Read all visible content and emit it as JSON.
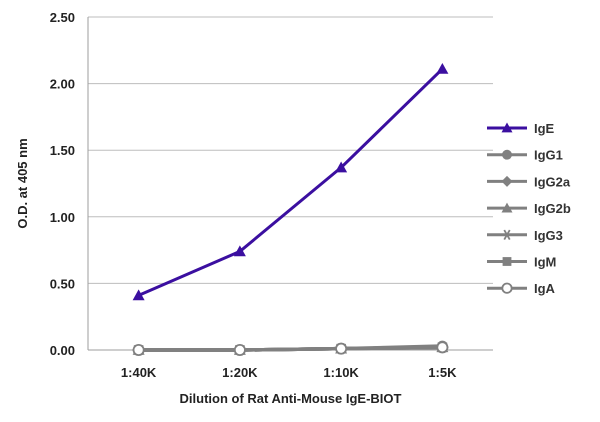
{
  "chart_data": {
    "type": "line",
    "title": "",
    "xlabel": "Dilution of Rat Anti-Mouse IgE-BIOT",
    "ylabel": "O.D. at 405 nm",
    "categories": [
      "1:40K",
      "1:20K",
      "1:10K",
      "1:5K"
    ],
    "ylim": [
      0,
      2.5
    ],
    "yticks": [
      0,
      0.5,
      1.0,
      1.5,
      2.0,
      2.5
    ],
    "ytick_labels": [
      "0.00",
      "0.50",
      "1.00",
      "1.50",
      "2.00",
      "2.50"
    ],
    "grid": true,
    "legend_position": "right",
    "series": [
      {
        "name": "IgE",
        "values": [
          0.41,
          0.74,
          1.37,
          2.11
        ],
        "color": "#3b0fa0",
        "marker": "triangle"
      },
      {
        "name": "IgG1",
        "values": [
          0.0,
          0.0,
          0.01,
          0.03
        ],
        "color": "#808080",
        "marker": "circle"
      },
      {
        "name": "IgG2a",
        "values": [
          0.0,
          0.0,
          0.01,
          0.02
        ],
        "color": "#808080",
        "marker": "diamond"
      },
      {
        "name": "IgG2b",
        "values": [
          0.0,
          0.0,
          0.01,
          0.02
        ],
        "color": "#808080",
        "marker": "triangle"
      },
      {
        "name": "IgG3",
        "values": [
          0.0,
          0.0,
          0.01,
          0.02
        ],
        "color": "#808080",
        "marker": "asterisk"
      },
      {
        "name": "IgM",
        "values": [
          0.0,
          0.0,
          0.01,
          0.02
        ],
        "color": "#808080",
        "marker": "square"
      },
      {
        "name": "IgA",
        "values": [
          0.0,
          0.0,
          0.01,
          0.02
        ],
        "color": "#808080",
        "marker": "circle-open"
      }
    ]
  }
}
